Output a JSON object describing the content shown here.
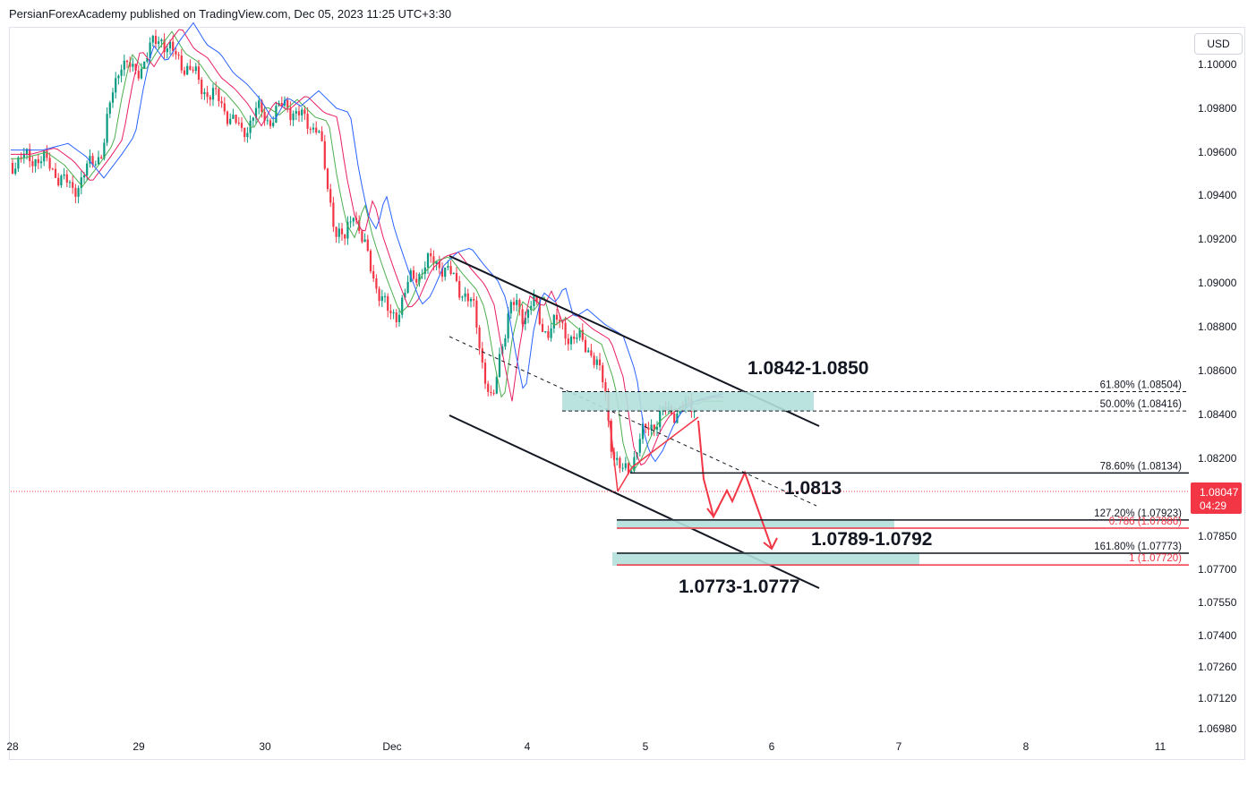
{
  "header": {
    "attribution": "PersianForexAcademy published on TradingView.com, Dec 05, 2023 11:25 UTC+3:30"
  },
  "toolbar": {
    "currency": "USD"
  },
  "chart_data": {
    "type": "candlestick",
    "symbol_currency": "USD",
    "x_axis_labels": [
      "28",
      "29",
      "30",
      "Dec",
      "4",
      "5",
      "6",
      "7",
      "8",
      "11"
    ],
    "y_axis_labels": [
      "1.10000",
      "1.09800",
      "1.09600",
      "1.09400",
      "1.09200",
      "1.09000",
      "1.08800",
      "1.08600",
      "1.08400",
      "1.08200",
      "1.07850",
      "1.07700",
      "1.07550",
      "1.07400",
      "1.07260",
      "1.07120",
      "1.06980"
    ],
    "ylim": [
      1.0698,
      1.1012
    ],
    "current_price": {
      "value": "1.08047",
      "countdown": "04:29",
      "color": "#f23645"
    },
    "fibonacci_levels": [
      {
        "label": "61.80% (1.08504)",
        "price": 1.08504,
        "style": "dashed",
        "color": "#131722"
      },
      {
        "label": "50.00% (1.08416)",
        "price": 1.08416,
        "style": "dashed",
        "color": "#131722"
      },
      {
        "label": "78.60% (1.08134)",
        "price": 1.08134,
        "style": "solid",
        "color": "#131722"
      },
      {
        "label": "127.20% (1.07923)",
        "price": 1.07923,
        "style": "solid",
        "color": "#131722"
      },
      {
        "label": "0.786 (1.07886)",
        "price": 1.07886,
        "style": "solid",
        "color": "#f23645"
      },
      {
        "label": "161.80% (1.07773)",
        "price": 1.07773,
        "style": "solid",
        "color": "#131722"
      },
      {
        "label": "1 (1.07720)",
        "price": 1.0772,
        "style": "solid",
        "color": "#f23645"
      }
    ],
    "zone_labels": [
      "1.0842-1.0850",
      "1.0813",
      "1.0789-1.0792",
      "1.0773-1.0777"
    ],
    "colors": {
      "up": "#089981",
      "down": "#f23645",
      "zone": "#b2dfdb",
      "ma_fast": "#4caf50",
      "ma_mid": "#e91e63",
      "ma_slow": "#2962ff",
      "projection": "#f23645"
    }
  }
}
